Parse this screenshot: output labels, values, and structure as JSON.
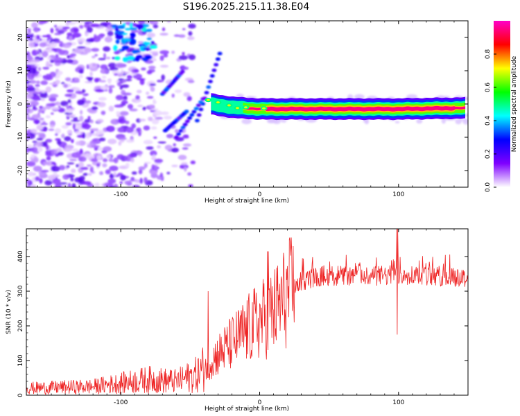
{
  "title": "S196.2025.215.11.38.E04",
  "chart_data": [
    {
      "type": "heatmap",
      "xlabel": "Height of straight line (km)",
      "ylabel": "Frequency (Hz)",
      "xlim": [
        -168,
        150
      ],
      "ylim": [
        -25,
        25
      ],
      "xticks": [
        -100,
        0,
        100
      ],
      "yticks": [
        -20,
        -10,
        0,
        10,
        20
      ],
      "colorbar": {
        "label": "Normalized spectral amplitude",
        "range": [
          0,
          1
        ],
        "ticks": [
          "0.0",
          "0.2",
          "0.4",
          "0.6",
          "0.8"
        ],
        "colors": [
          "#ffffff",
          "#7f00ff",
          "#0000ff",
          "#00ffff",
          "#00ff00",
          "#ffff00",
          "#ff0000",
          "#ff00c8"
        ]
      },
      "ridge": {
        "description_points": [
          {
            "x": -35,
            "y": 0.0
          },
          {
            "x": -20,
            "y": -1.0
          },
          {
            "x": 0,
            "y": -1.5
          },
          {
            "x": 50,
            "y": -1.5
          },
          {
            "x": 100,
            "y": -1.5
          },
          {
            "x": 148,
            "y": -1.2
          }
        ],
        "peak_amplitude": 0.95
      }
    },
    {
      "type": "line",
      "xlabel": "Height of straight line (km)",
      "ylabel": "SNR (10 * v/v)",
      "xlim": [
        -168,
        150
      ],
      "ylim": [
        0,
        480
      ],
      "xticks": [
        -100,
        0,
        100
      ],
      "yticks": [
        0,
        100,
        200,
        300,
        400
      ],
      "color": "#ee2222",
      "series_envelope": [
        {
          "x": -168,
          "y": 20
        },
        {
          "x": -120,
          "y": 25
        },
        {
          "x": -100,
          "y": 35
        },
        {
          "x": -80,
          "y": 45
        },
        {
          "x": -60,
          "y": 40
        },
        {
          "x": -45,
          "y": 60
        },
        {
          "x": -35,
          "y": 100
        },
        {
          "x": -20,
          "y": 150
        },
        {
          "x": -5,
          "y": 200
        },
        {
          "x": 10,
          "y": 240
        },
        {
          "x": 20,
          "y": 290
        },
        {
          "x": 30,
          "y": 330
        },
        {
          "x": 45,
          "y": 345
        },
        {
          "x": 70,
          "y": 345
        },
        {
          "x": 95,
          "y": 345
        },
        {
          "x": 100,
          "y": 350
        },
        {
          "x": 120,
          "y": 345
        },
        {
          "x": 150,
          "y": 340
        }
      ],
      "features": [
        {
          "x": 99,
          "y_max": 480,
          "y_min": 175
        },
        {
          "x": 6,
          "y_max": 415,
          "y_min": 130
        },
        {
          "x": -37,
          "y_max": 300,
          "y_min": 50
        }
      ]
    }
  ]
}
